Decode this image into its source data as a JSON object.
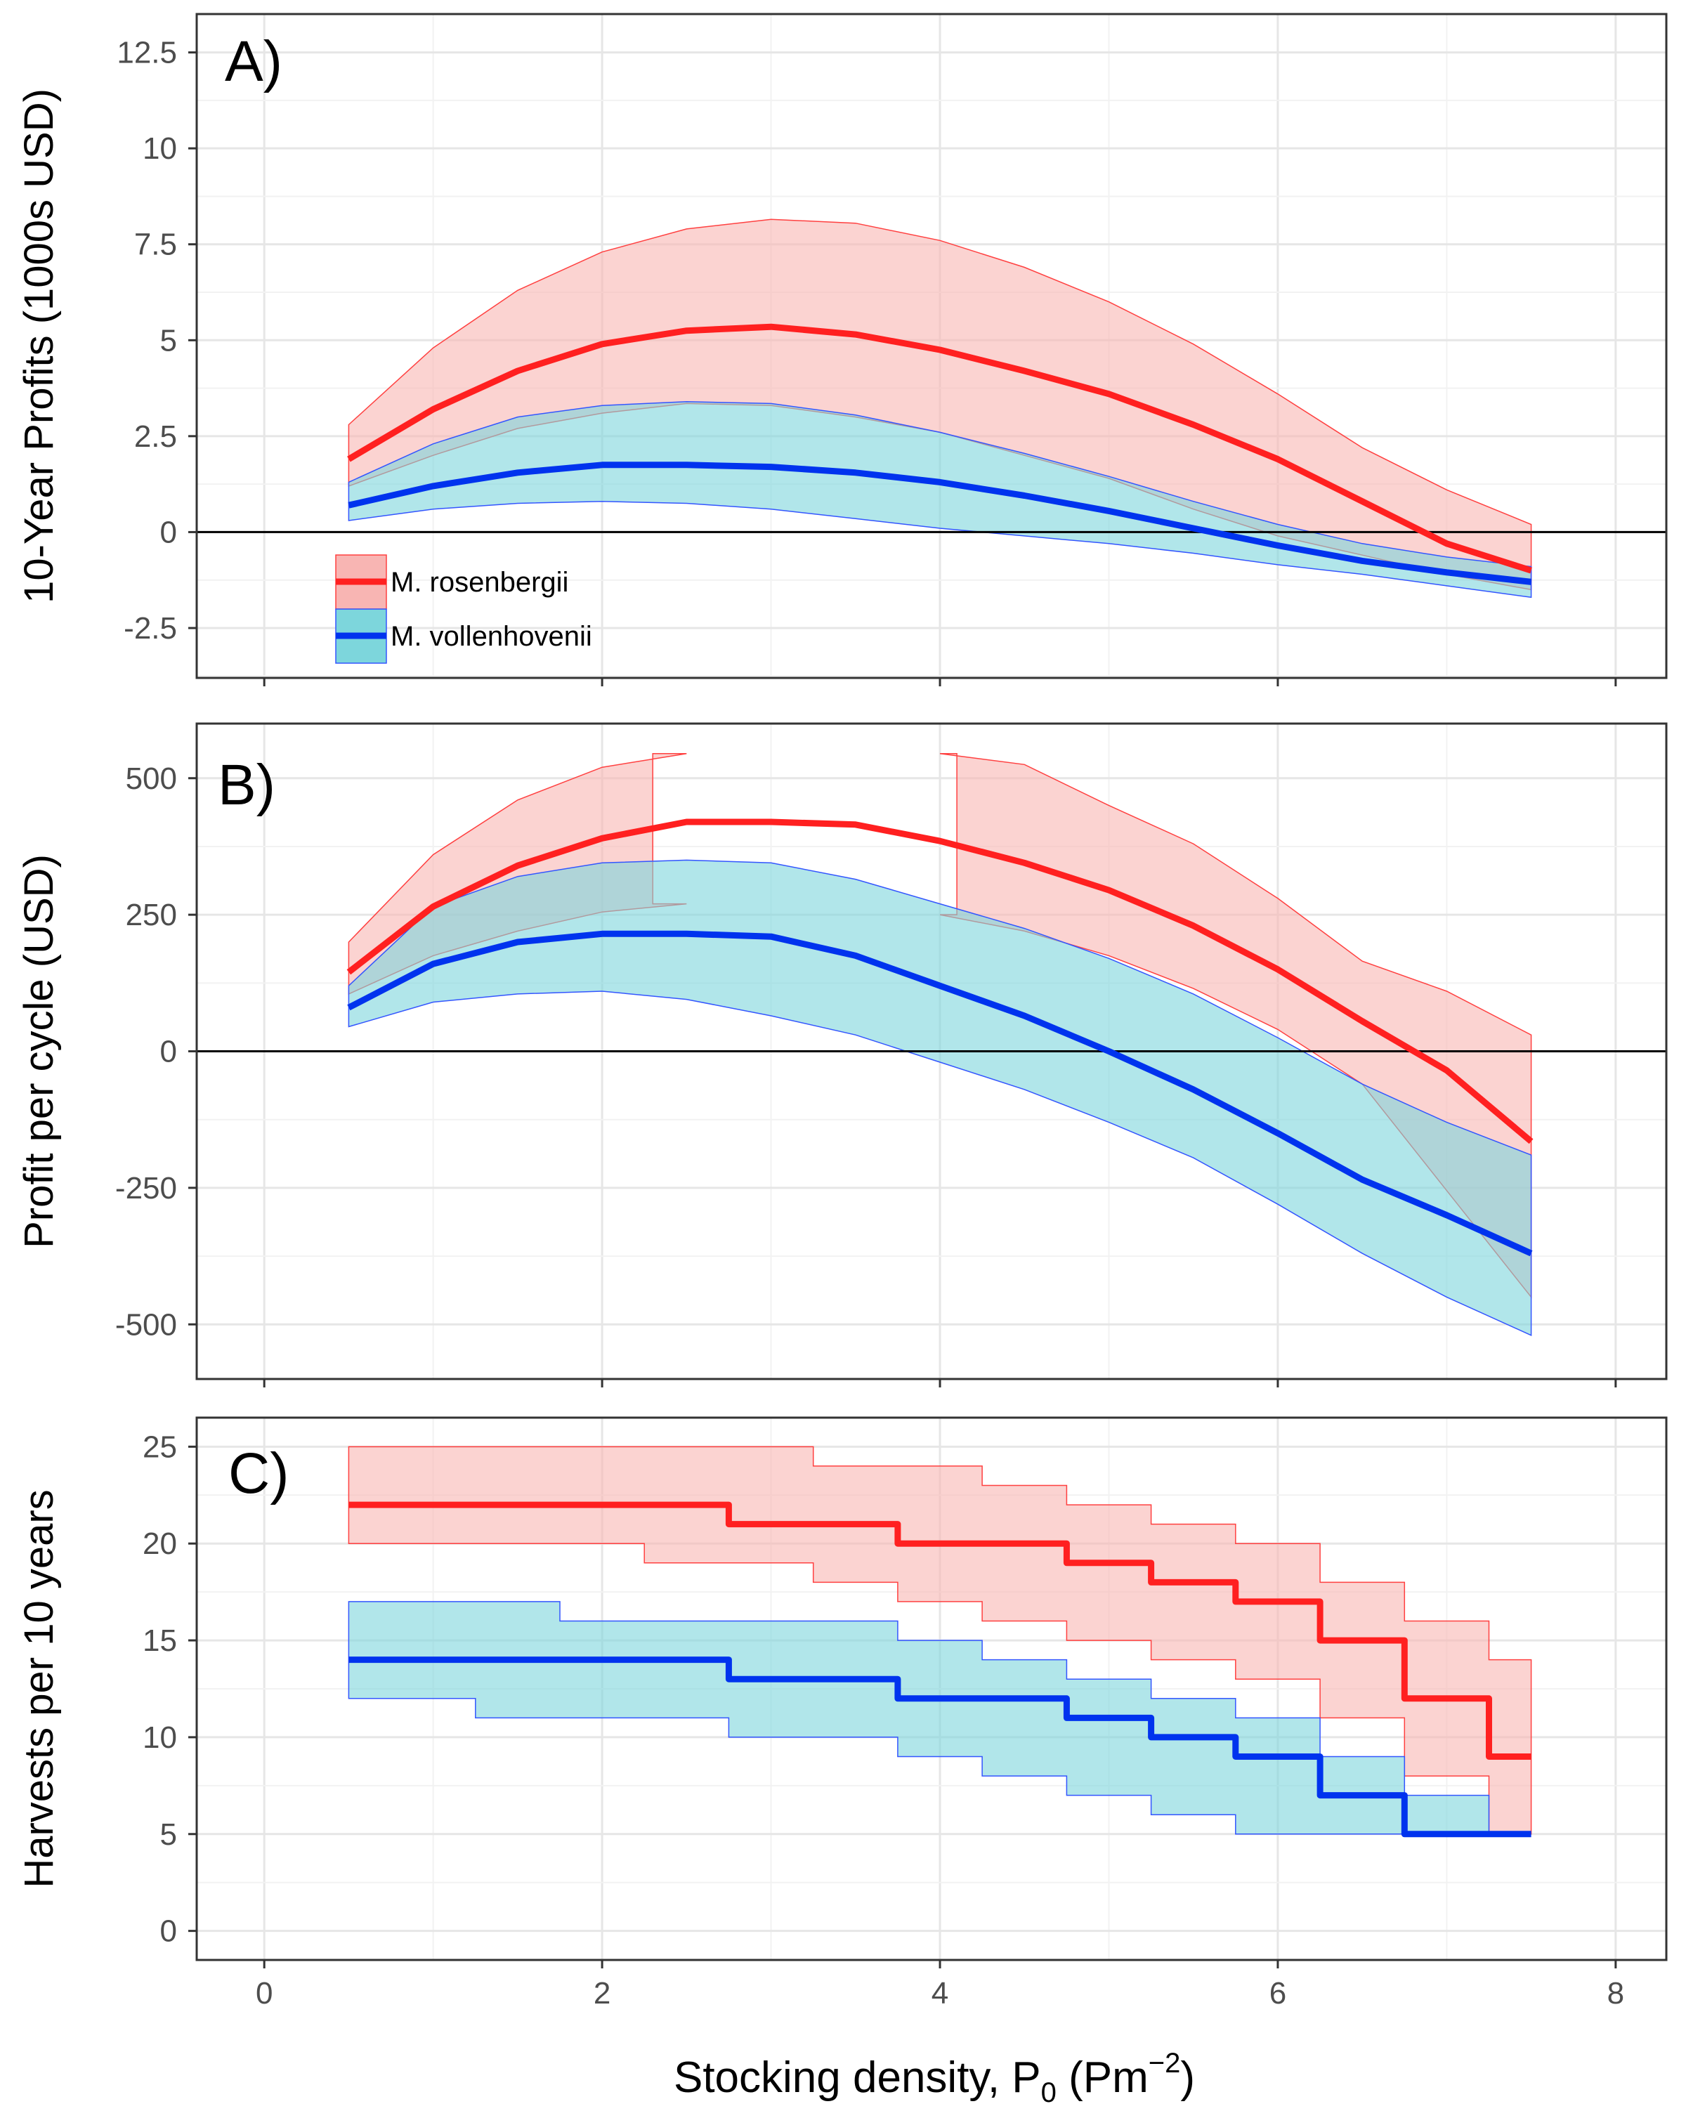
{
  "figure": {
    "x_axis": {
      "label_prefix": "Stocking density, P",
      "label_sub": "0",
      "label_mid": " (Pm",
      "label_sup": "−2",
      "label_end": ")",
      "ticks": [
        "0",
        "2",
        "4",
        "6",
        "8"
      ],
      "range": [
        -0.4,
        8.3
      ]
    },
    "colors": {
      "rosenbergii_line": "#ff2020",
      "rosenbergii_fill": "#f8b5b3",
      "rosenbergii_edge": "#ff4040",
      "vollenhovenii_line": "#0033ee",
      "vollenhovenii_fill": "#7dd6dc",
      "vollenhovenii_edge": "#3355ff",
      "grid_major": "#e6e6e6",
      "grid_minor": "#f2f2f2",
      "zero_line": "#000000"
    },
    "legend": {
      "items": [
        {
          "label": "M. rosenbergii",
          "key": "rosenbergii"
        },
        {
          "label": "M. vollenhovenii",
          "key": "vollenhovenii"
        }
      ],
      "placement": "inside bottom-left of panel A"
    }
  },
  "chart_data": [
    {
      "panel_label": "A)",
      "type": "line",
      "ylabel": "10-Year Profits (1000s USD)",
      "ylim": [
        -3.8,
        13.5
      ],
      "yticks": [
        "12.5",
        "10",
        "7.5",
        "5",
        "2.5",
        "0",
        "-2.5"
      ],
      "ytick_values": [
        12.5,
        10,
        7.5,
        5,
        2.5,
        0,
        -2.5
      ],
      "reference_line": 0,
      "x": [
        0.5,
        1.0,
        1.5,
        2.0,
        2.5,
        3.0,
        3.5,
        4.0,
        4.5,
        5.0,
        5.5,
        6.0,
        6.5,
        7.0,
        7.5
      ],
      "series": [
        {
          "name": "M. rosenbergii",
          "key": "rosenbergii",
          "values": [
            1.9,
            3.2,
            4.2,
            4.9,
            5.25,
            5.35,
            5.15,
            4.75,
            4.2,
            3.6,
            2.8,
            1.9,
            0.8,
            -0.3,
            -1.0
          ],
          "lower": [
            1.2,
            2.0,
            2.7,
            3.1,
            3.35,
            3.3,
            3.0,
            2.6,
            2.0,
            1.4,
            0.6,
            -0.1,
            -0.6,
            -1.1,
            -1.5
          ],
          "upper": [
            2.8,
            4.8,
            6.3,
            7.3,
            7.9,
            8.15,
            8.05,
            7.6,
            6.9,
            6.0,
            4.9,
            3.6,
            2.2,
            1.1,
            0.2
          ]
        },
        {
          "name": "M. vollenhovenii",
          "key": "vollenhovenii",
          "values": [
            0.7,
            1.2,
            1.55,
            1.75,
            1.75,
            1.7,
            1.55,
            1.3,
            0.95,
            0.55,
            0.1,
            -0.35,
            -0.75,
            -1.05,
            -1.3
          ],
          "lower": [
            0.3,
            0.6,
            0.75,
            0.8,
            0.75,
            0.6,
            0.35,
            0.1,
            -0.1,
            -0.3,
            -0.55,
            -0.85,
            -1.1,
            -1.4,
            -1.7
          ],
          "upper": [
            1.3,
            2.3,
            3.0,
            3.3,
            3.4,
            3.35,
            3.05,
            2.6,
            2.05,
            1.45,
            0.8,
            0.2,
            -0.3,
            -0.65,
            -0.9
          ]
        }
      ]
    },
    {
      "panel_label": "B)",
      "type": "line",
      "ylabel": "Profit per cycle (USD)",
      "ylim": [
        -600,
        600
      ],
      "yticks": [
        "500",
        "250",
        "0",
        "-250",
        "-500"
      ],
      "ytick_values": [
        500,
        250,
        0,
        -250,
        -500
      ],
      "reference_line": 0,
      "x": [
        0.5,
        1.0,
        1.5,
        2.0,
        2.5,
        3.0,
        3.5,
        4.0,
        4.5,
        5.0,
        5.5,
        6.0,
        6.5,
        7.0,
        7.5
      ],
      "series": [
        {
          "name": "M. rosenbergii",
          "key": "rosenbergii",
          "values": [
            145,
            265,
            340,
            390,
            420,
            420,
            415,
            385,
            345,
            295,
            230,
            150,
            55,
            -35,
            -165
          ],
          "lower": [
            105,
            175,
            220,
            255,
            270,
            270,
            265,
            250,
            220,
            175,
            115,
            40,
            -60,
            -255,
            -450
          ],
          "upper": [
            200,
            360,
            460,
            520,
            545,
            null,
            null,
            545,
            525,
            450,
            380,
            280,
            165,
            110,
            30
          ],
          "upper_gap_range": [
            2.3,
            4.1
          ]
        },
        {
          "name": "M. vollenhovenii",
          "key": "vollenhovenii",
          "values": [
            80,
            160,
            200,
            215,
            215,
            210,
            175,
            120,
            65,
            0,
            -70,
            -150,
            -235,
            -300,
            -370
          ],
          "lower": [
            45,
            90,
            105,
            110,
            95,
            65,
            30,
            -20,
            -70,
            -130,
            -195,
            -280,
            -370,
            -450,
            -520
          ],
          "upper": [
            120,
            265,
            320,
            345,
            350,
            345,
            315,
            270,
            225,
            170,
            105,
            25,
            -60,
            -130,
            -190
          ]
        }
      ]
    },
    {
      "panel_label": "C)",
      "type": "line",
      "ylabel": "Harvests per 10 years",
      "ylim": [
        -1.5,
        26.5
      ],
      "yticks": [
        "25",
        "20",
        "15",
        "10",
        "5",
        "0"
      ],
      "ytick_values": [
        25,
        20,
        15,
        10,
        5,
        0
      ],
      "x": [
        0.5,
        1.0,
        1.5,
        2.0,
        2.5,
        3.0,
        3.5,
        4.0,
        4.5,
        5.0,
        5.5,
        6.0,
        6.5,
        7.0,
        7.5
      ],
      "series": [
        {
          "name": "M. rosenbergii",
          "key": "rosenbergii",
          "values": [
            22,
            22,
            22,
            22,
            22,
            21,
            21,
            20,
            20,
            19,
            18,
            17,
            15,
            12,
            9
          ],
          "lower": [
            20,
            20,
            20,
            20,
            19,
            19,
            18,
            17,
            16,
            15,
            14,
            13,
            11,
            8,
            5
          ],
          "upper": [
            25,
            25,
            25,
            25,
            25,
            25,
            24,
            24,
            23,
            22,
            21,
            20,
            18,
            16,
            14
          ]
        },
        {
          "name": "M. vollenhovenii",
          "key": "vollenhovenii",
          "values": [
            14,
            14,
            14,
            14,
            14,
            13,
            13,
            12,
            12,
            11,
            10,
            9,
            7,
            5,
            5
          ],
          "lower": [
            12,
            12,
            11,
            11,
            11,
            10,
            10,
            9,
            8,
            7,
            6,
            5,
            5,
            5,
            5
          ],
          "upper": [
            17,
            17,
            17,
            16,
            16,
            16,
            16,
            15,
            14,
            13,
            12,
            11,
            9,
            7,
            5
          ]
        }
      ]
    }
  ]
}
